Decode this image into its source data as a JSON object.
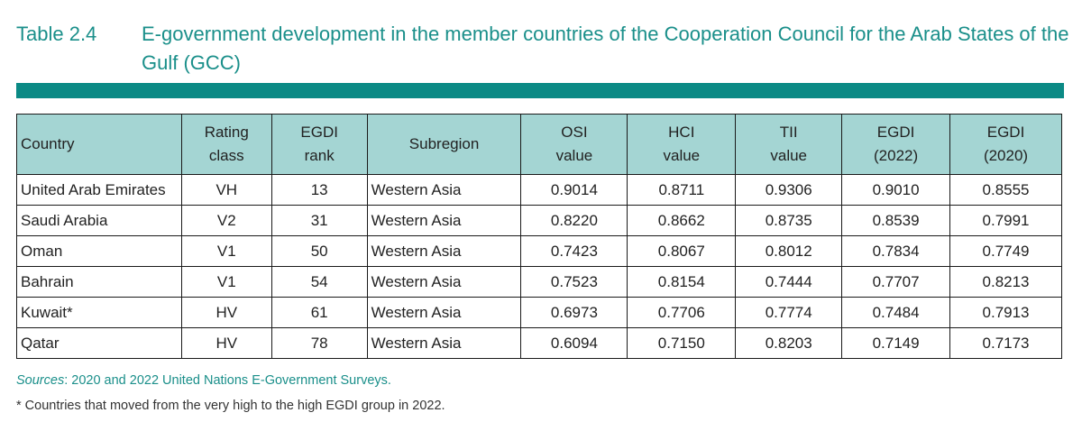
{
  "caption": {
    "number": "Table 2.4",
    "title": "E-government development in the member countries of the Cooperation Council for the Arab States of the Gulf (GCC)"
  },
  "table": {
    "headers": {
      "country": "Country",
      "rating_1": "Rating",
      "rating_2": "class",
      "rank_1": "EGDI",
      "rank_2": "rank",
      "subregion": "Subregion",
      "osi_1": "OSI",
      "osi_2": "value",
      "hci_1": "HCI",
      "hci_2": "value",
      "tii_1": "TII",
      "tii_2": "value",
      "egdi22_1": "EGDI",
      "egdi22_2": "(2022)",
      "egdi20_1": "EGDI",
      "egdi20_2": "(2020)"
    },
    "rows": [
      {
        "country": "United Arab Emirates",
        "rating": "VH",
        "rank": "13",
        "subregion": "Western Asia",
        "osi": "0.9014",
        "hci": "0.8711",
        "tii": "0.9306",
        "egdi2022": "0.9010",
        "egdi2020": "0.8555"
      },
      {
        "country": "Saudi Arabia",
        "rating": "V2",
        "rank": "31",
        "subregion": "Western Asia",
        "osi": "0.8220",
        "hci": "0.8662",
        "tii": "0.8735",
        "egdi2022": "0.8539",
        "egdi2020": "0.7991"
      },
      {
        "country": "Oman",
        "rating": "V1",
        "rank": "50",
        "subregion": "Western Asia",
        "osi": "0.7423",
        "hci": "0.8067",
        "tii": "0.8012",
        "egdi2022": "0.7834",
        "egdi2020": "0.7749"
      },
      {
        "country": "Bahrain",
        "rating": "V1",
        "rank": "54",
        "subregion": "Western Asia",
        "osi": "0.7523",
        "hci": "0.8154",
        "tii": "0.7444",
        "egdi2022": "0.7707",
        "egdi2020": "0.8213"
      },
      {
        "country": "Kuwait*",
        "rating": "HV",
        "rank": "61",
        "subregion": "Western Asia",
        "osi": "0.6973",
        "hci": "0.7706",
        "tii": "0.7774",
        "egdi2022": "0.7484",
        "egdi2020": "0.7913"
      },
      {
        "country": "Qatar",
        "rating": "HV",
        "rank": "78",
        "subregion": "Western Asia",
        "osi": "0.6094",
        "hci": "0.7150",
        "tii": "0.8203",
        "egdi2022": "0.7149",
        "egdi2020": "0.7173"
      }
    ]
  },
  "footer": {
    "sources_label": "Sources",
    "sources_text": ": 2020 and 2022 United Nations E-Government Surveys.",
    "note": "* Countries that moved from the very high to the high EGDI group in 2022."
  },
  "colors": {
    "accent": "#1a8f8a",
    "rule": "#0b8a85",
    "header_bg": "#a4d5d3"
  }
}
